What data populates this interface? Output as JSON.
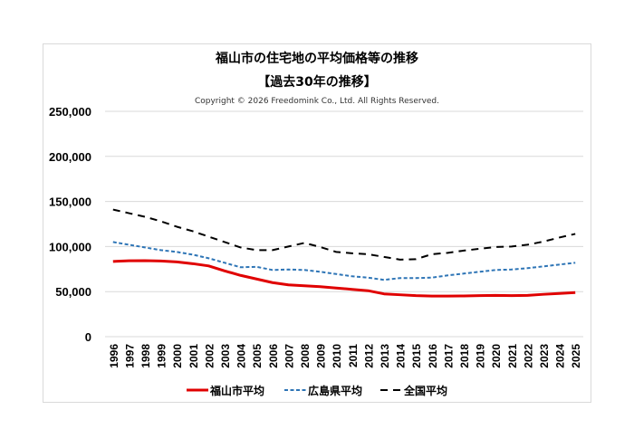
{
  "chart_data": {
    "type": "line",
    "title": "福山市の住宅地の平均価格等の推移",
    "subtitle": "【過去30年の推移】",
    "copyright": "Copyright © 2026 Freedomink Co., Ltd. All Rights Reserved.",
    "x": [
      "1996",
      "1997",
      "1998",
      "1999",
      "2000",
      "2001",
      "2002",
      "2003",
      "2004",
      "2005",
      "2006",
      "2007",
      "2008",
      "2009",
      "2010",
      "2011",
      "2012",
      "2013",
      "2014",
      "2015",
      "2016",
      "2017",
      "2018",
      "2019",
      "2020",
      "2021",
      "2022",
      "2023",
      "2024",
      "2025"
    ],
    "ylim": [
      0,
      250000
    ],
    "yticks": [
      "0",
      "50,000",
      "100,000",
      "150,000",
      "200,000",
      "250,000"
    ],
    "grid": true,
    "legend_position": "bottom",
    "series": [
      {
        "name": "福山市平均",
        "color": "#e00000",
        "dash": "solid",
        "values": [
          83500,
          84200,
          84300,
          84000,
          83000,
          81000,
          78500,
          73000,
          68000,
          64000,
          60000,
          57500,
          56500,
          55500,
          54000,
          52500,
          51000,
          47500,
          46500,
          45500,
          45000,
          45000,
          45200,
          45500,
          45800,
          45500,
          45800,
          47000,
          48000,
          49000
        ]
      },
      {
        "name": "広島県平均",
        "color": "#2e75b6",
        "dash": "short",
        "values": [
          105000,
          102000,
          99000,
          96000,
          94000,
          91000,
          87000,
          82000,
          77000,
          77500,
          74000,
          74500,
          74000,
          72000,
          69500,
          67000,
          65500,
          63000,
          65000,
          65000,
          65500,
          68000,
          70000,
          72000,
          74000,
          74500,
          76000,
          78000,
          80000,
          82000
        ]
      },
      {
        "name": "全国平均",
        "color": "#000000",
        "dash": "long",
        "values": [
          141000,
          137000,
          133000,
          128000,
          122000,
          117000,
          111000,
          105000,
          99000,
          96000,
          96000,
          100000,
          104000,
          99500,
          94000,
          92500,
          91500,
          88500,
          85500,
          86000,
          91500,
          93000,
          95500,
          97500,
          99500,
          100000,
          102000,
          105500,
          110000,
          114000
        ]
      }
    ]
  }
}
